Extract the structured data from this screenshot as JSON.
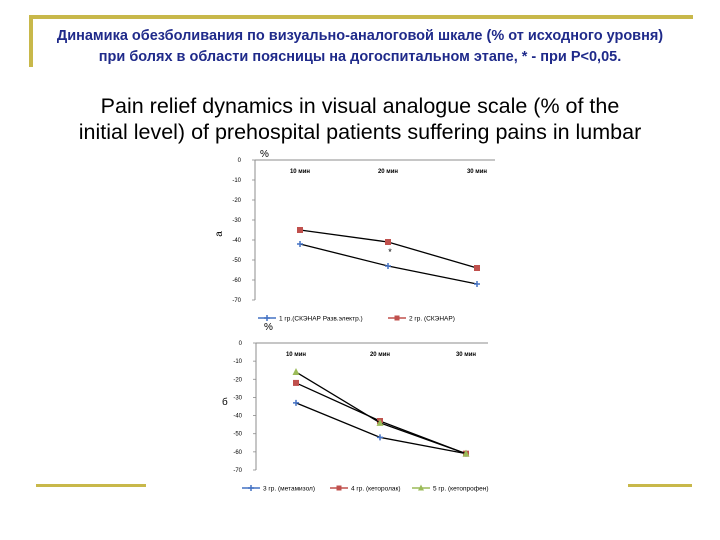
{
  "title_ru": "Динамика обезболивания по визуально-аналоговой шкале (% от исходного уровня) при болях в области поясницы на догоспитальном этапе, * - при P<0,05.",
  "title_en_line1": "Pain relief dynamics in visual analogue scale (% of the",
  "title_en_line2": "initial level) of prehospital patients suffering pains in lumbar",
  "colors": {
    "accent": "#c8b84a",
    "title_ru": "#1f2a8a",
    "blue": "#4472c4",
    "red": "#c0504d",
    "olive": "#9bbb59"
  },
  "chart_data": [
    {
      "type": "line",
      "panel_label": "a",
      "unit_label": "%",
      "categories": [
        "10 мин",
        "20 мин",
        "30 мин"
      ],
      "yticks": [
        "0",
        "-10",
        "-20",
        "-30",
        "-40",
        "-50",
        "-60",
        "-70"
      ],
      "ylim": [
        -70,
        0
      ],
      "significance_marker": "*",
      "series": [
        {
          "name": "1 гр.(СКЭНАР Разв.электр.)",
          "color": "#4472c4",
          "marker": "+",
          "values": [
            -42,
            -53,
            -62
          ]
        },
        {
          "name": "2 гр. (СКЭНАР)",
          "color": "#c0504d",
          "marker": "square",
          "values": [
            -35,
            -41,
            -54
          ]
        }
      ],
      "legend_position": "bottom"
    },
    {
      "type": "line",
      "panel_label": "б",
      "unit_label": "%",
      "categories": [
        "10 мин",
        "20 мин",
        "30 мин"
      ],
      "yticks": [
        "0",
        "-10",
        "-20",
        "-30",
        "-40",
        "-50",
        "-60",
        "-70"
      ],
      "ylim": [
        -70,
        0
      ],
      "series": [
        {
          "name": "3 гр. (метамизол)",
          "color": "#4472c4",
          "marker": "+",
          "values": [
            -33,
            -52,
            -61
          ]
        },
        {
          "name": "4 гр. (кеторолак)",
          "color": "#c0504d",
          "marker": "square",
          "values": [
            -22,
            -43,
            -61
          ]
        },
        {
          "name": "5 гр. (кетопрофен)",
          "color": "#9bbb59",
          "marker": "triangle",
          "values": [
            -16,
            -44,
            -61
          ]
        }
      ],
      "legend_position": "bottom"
    }
  ]
}
